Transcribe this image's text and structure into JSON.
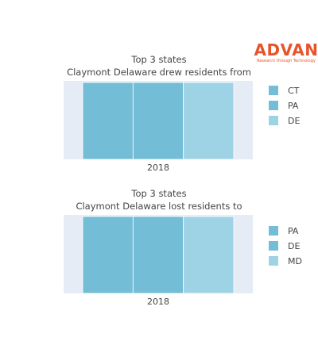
{
  "brand": {
    "name": "ADVAN",
    "tagline": "Research through Technology",
    "color": "#e8542a"
  },
  "colors": {
    "plot_bg": "#e5ecf6",
    "text": "#444444",
    "divider": "#ffffff"
  },
  "chart_data": [
    {
      "type": "bar",
      "orientation": "stacked",
      "title_lines": [
        "Top 3 states",
        "Claymont Delaware drew residents from"
      ],
      "categories": [
        "2018"
      ],
      "series": [
        {
          "name": "CT",
          "values": [
            1
          ],
          "color": "#74bdd6"
        },
        {
          "name": "PA",
          "values": [
            1
          ],
          "color": "#74bdd6"
        },
        {
          "name": "DE",
          "values": [
            1
          ],
          "color": "#9ed3e5"
        }
      ],
      "legend_position": "right",
      "grid": false
    },
    {
      "type": "bar",
      "orientation": "stacked",
      "title_lines": [
        "Top 3 states",
        "Claymont Delaware lost residents to"
      ],
      "categories": [
        "2018"
      ],
      "series": [
        {
          "name": "PA",
          "values": [
            1
          ],
          "color": "#74bdd6"
        },
        {
          "name": "DE",
          "values": [
            1
          ],
          "color": "#74bdd6"
        },
        {
          "name": "MD",
          "values": [
            1
          ],
          "color": "#9ed3e5"
        }
      ],
      "legend_position": "right",
      "grid": false
    }
  ]
}
